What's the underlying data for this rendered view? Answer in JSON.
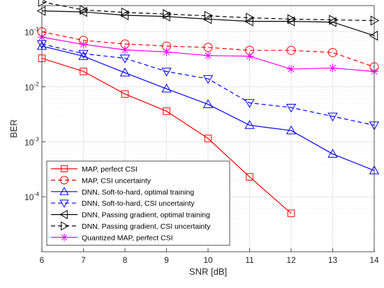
{
  "chart_data": {
    "type": "line",
    "xlabel": "SNR [dB]",
    "ylabel": "BER",
    "xlim": [
      6,
      14
    ],
    "ylim": [
      1e-05,
      0.3
    ],
    "yscale": "log",
    "grid": true,
    "legend_position": "bottom-left",
    "x_ticks": [
      6,
      7,
      8,
      9,
      10,
      11,
      12,
      13,
      14
    ],
    "y_ticks": [
      {
        "value": 0.0001,
        "base": "10",
        "exp": "-4"
      },
      {
        "value": 0.001,
        "base": "10",
        "exp": "-3"
      },
      {
        "value": 0.01,
        "base": "10",
        "exp": "-2"
      },
      {
        "value": 0.1,
        "base": "10",
        "exp": "-1"
      }
    ],
    "series": [
      {
        "name": "MAP, perfect CSI",
        "color": "#ff0000",
        "dash": "solid",
        "marker": "square",
        "x": [
          6,
          7,
          8,
          9,
          10,
          11,
          12
        ],
        "y": [
          0.033,
          0.019,
          0.0074,
          0.0036,
          0.00115,
          0.00023,
          5e-05
        ]
      },
      {
        "name": "MAP, CSI uncertainty",
        "color": "#ff0000",
        "dash": "dashed",
        "marker": "circle",
        "x": [
          6,
          7,
          8,
          9,
          10,
          11,
          12,
          13,
          14
        ],
        "y": [
          0.1,
          0.07,
          0.06,
          0.055,
          0.052,
          0.046,
          0.046,
          0.042,
          0.023
        ]
      },
      {
        "name": "DNN, Soft-to-hard, optimal training",
        "color": "#0000ff",
        "dash": "solid",
        "marker": "triangle-up",
        "x": [
          6,
          7,
          8,
          9,
          10,
          11,
          12,
          13,
          14
        ],
        "y": [
          0.055,
          0.036,
          0.018,
          0.0092,
          0.0048,
          0.002,
          0.0016,
          0.0006,
          0.0003
        ]
      },
      {
        "name": "DNN, Soft-to-hard, CSI uncertainty",
        "color": "#0000ff",
        "dash": "dashed",
        "marker": "triangle-down",
        "x": [
          6,
          7,
          8,
          9,
          10,
          11,
          12,
          13,
          14
        ],
        "y": [
          0.06,
          0.04,
          0.033,
          0.019,
          0.014,
          0.0051,
          0.0042,
          0.0029,
          0.002
        ]
      },
      {
        "name": "DNN, Passing gradient, optimal training",
        "color": "#000000",
        "dash": "solid",
        "marker": "triangle-left",
        "x": [
          6,
          7,
          8,
          9,
          10,
          11,
          12,
          13,
          14
        ],
        "y": [
          0.24,
          0.23,
          0.2,
          0.19,
          0.17,
          0.155,
          0.155,
          0.15,
          0.085
        ]
      },
      {
        "name": "DNN, Passing gradient, CSI uncertainty",
        "color": "#000000",
        "dash": "dashed",
        "marker": "triangle-right",
        "x": [
          6,
          7,
          8,
          9,
          10,
          11,
          12,
          13,
          14
        ],
        "y": [
          0.35,
          0.25,
          0.225,
          0.21,
          0.195,
          0.18,
          0.17,
          0.165,
          0.16
        ]
      },
      {
        "name": "Quantized MAP, perfect CSI",
        "color": "#ff00ff",
        "dash": "solid",
        "marker": "asterisk",
        "x": [
          6,
          7,
          8,
          9,
          10,
          11,
          12,
          13,
          14
        ],
        "y": [
          0.08,
          0.059,
          0.047,
          0.043,
          0.037,
          0.036,
          0.021,
          0.022,
          0.019
        ]
      }
    ]
  }
}
